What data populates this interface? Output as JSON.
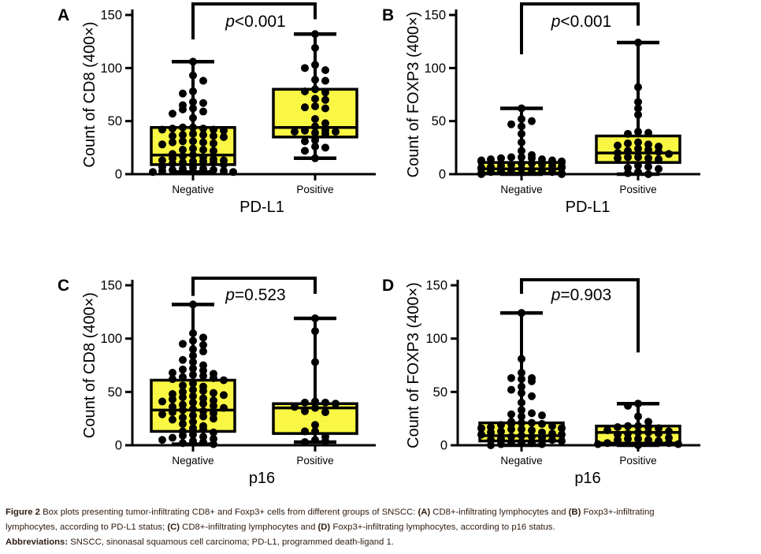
{
  "figure": {
    "background": "#ffffff",
    "box_fill": "#f9f743",
    "line_color": "#000000",
    "caption_color": "#2d1b10"
  },
  "chart_data": [
    {
      "type": "box-scatter",
      "panel_label": "A",
      "title": "",
      "xlabel": "PD-L1",
      "ylabel": "Count of CD8 (400×)",
      "ylim": [
        0,
        150
      ],
      "yticks": [
        0,
        50,
        100,
        150
      ],
      "categories": [
        "Negative",
        "Positive"
      ],
      "p_label": "p<0.001",
      "bracket": {
        "left_drop": 127,
        "right_drop": 146
      },
      "groups": [
        {
          "name": "Negative",
          "box": {
            "min": 2,
            "q1": 9,
            "median": 18,
            "q3": 44,
            "max": 106
          },
          "points": [
            106,
            93,
            88,
            78,
            76,
            68,
            67,
            65,
            62,
            61,
            59,
            57,
            53,
            44,
            44,
            43,
            43,
            42,
            42,
            41,
            38,
            37,
            37,
            36,
            36,
            35,
            31,
            31,
            30,
            30,
            29,
            28,
            24,
            23,
            23,
            22,
            19,
            18,
            17,
            16,
            15,
            14,
            13,
            13,
            12,
            12,
            11,
            11,
            10,
            9,
            7,
            6,
            5,
            5,
            4,
            4,
            3,
            3,
            2,
            2
          ]
        },
        {
          "name": "Positive",
          "box": {
            "min": 15,
            "q1": 35,
            "median": 44,
            "q3": 80,
            "max": 132
          },
          "points": [
            132,
            119,
            103,
            100,
            98,
            89,
            88,
            80,
            78,
            77,
            71,
            70,
            64,
            63,
            62,
            52,
            48,
            45,
            41,
            41,
            40,
            40,
            39,
            38,
            32,
            31,
            26,
            25,
            22,
            15
          ]
        }
      ]
    },
    {
      "type": "box-scatter",
      "panel_label": "B",
      "title": "",
      "xlabel": "PD-L1",
      "ylabel": "Count of FOXP3 (400×)",
      "ylim": [
        0,
        150
      ],
      "yticks": [
        0,
        50,
        100,
        150
      ],
      "categories": [
        "Negative",
        "Positive"
      ],
      "p_label": "p<0.001",
      "bracket": {
        "left_drop": 113,
        "right_drop": 140
      },
      "groups": [
        {
          "name": "Negative",
          "box": {
            "min": 0,
            "q1": 1,
            "median": 5,
            "q3": 11,
            "max": 62
          },
          "points": [
            62,
            52,
            50,
            47,
            45,
            38,
            30,
            22,
            18,
            16,
            16,
            15,
            15,
            14,
            14,
            13,
            13,
            12,
            12,
            11,
            10,
            10,
            9,
            9,
            8,
            8,
            7,
            7,
            6,
            6,
            5,
            5,
            4,
            4,
            3,
            3,
            2,
            2,
            1,
            1,
            0,
            0
          ]
        },
        {
          "name": "Positive",
          "box": {
            "min": 0,
            "q1": 11,
            "median": 20,
            "q3": 36,
            "max": 124
          },
          "points": [
            124,
            82,
            68,
            62,
            56,
            40,
            39,
            38,
            30,
            29,
            28,
            27,
            26,
            24,
            23,
            22,
            21,
            20,
            19,
            16,
            16,
            15,
            15,
            14,
            8,
            7,
            6,
            5,
            2,
            1,
            0
          ]
        }
      ]
    },
    {
      "type": "box-scatter",
      "panel_label": "C",
      "title": "",
      "xlabel": "p16",
      "ylabel": "Count of CD8 (400×)",
      "ylim": [
        0,
        150
      ],
      "yticks": [
        0,
        50,
        100,
        150
      ],
      "categories": [
        "Negative",
        "Positive"
      ],
      "p_label": "p=0.523",
      "bracket": {
        "left_drop": 140,
        "right_drop": 142
      },
      "groups": [
        {
          "name": "Negative",
          "box": {
            "min": 1,
            "q1": 13,
            "median": 33,
            "q3": 61,
            "max": 132
          },
          "points": [
            132,
            105,
            101,
            98,
            95,
            94,
            90,
            88,
            84,
            80,
            78,
            75,
            72,
            71,
            70,
            68,
            67,
            66,
            65,
            64,
            63,
            62,
            61,
            58,
            56,
            55,
            52,
            51,
            50,
            49,
            48,
            47,
            46,
            45,
            44,
            43,
            42,
            41,
            40,
            39,
            38,
            37,
            36,
            35,
            34,
            33,
            32,
            31,
            30,
            29,
            28,
            27,
            26,
            25,
            24,
            22,
            20,
            18,
            16,
            15,
            13,
            12,
            10,
            9,
            8,
            7,
            6,
            5,
            4,
            3,
            2,
            1
          ]
        },
        {
          "name": "Positive",
          "box": {
            "min": 3,
            "q1": 11,
            "median": 35,
            "q3": 39,
            "max": 119
          },
          "points": [
            119,
            107,
            78,
            41,
            40,
            40,
            39,
            36,
            35,
            32,
            31,
            19,
            13,
            13,
            8,
            5,
            4,
            3
          ]
        }
      ]
    },
    {
      "type": "box-scatter",
      "panel_label": "D",
      "title": "",
      "xlabel": "p16",
      "ylabel": "Count of FOXP3 (400×)",
      "ylim": [
        0,
        150
      ],
      "yticks": [
        0,
        50,
        100,
        150
      ],
      "categories": [
        "Negative",
        "Positive"
      ],
      "p_label": "p=0.903",
      "bracket": {
        "left_drop": 142,
        "right_drop": 87
      },
      "groups": [
        {
          "name": "Negative",
          "box": {
            "min": 0,
            "q1": 4,
            "median": 9,
            "q3": 21,
            "max": 124
          },
          "points": [
            124,
            81,
            68,
            63,
            63,
            62,
            60,
            55,
            52,
            49,
            46,
            40,
            33,
            30,
            29,
            28,
            27,
            22,
            21,
            21,
            20,
            20,
            19,
            18,
            17,
            16,
            16,
            15,
            15,
            14,
            13,
            12,
            12,
            11,
            10,
            10,
            9,
            8,
            8,
            7,
            6,
            5,
            5,
            4,
            3,
            3,
            2,
            1,
            1,
            0
          ]
        },
        {
          "name": "Positive",
          "box": {
            "min": 0,
            "q1": 2,
            "median": 12,
            "q3": 18,
            "max": 39
          },
          "points": [
            39,
            37,
            27,
            22,
            18,
            18,
            17,
            17,
            16,
            14,
            13,
            12,
            12,
            11,
            11,
            10,
            7,
            6,
            6,
            5,
            5,
            4,
            2,
            2,
            1,
            1,
            0
          ]
        }
      ]
    }
  ],
  "caption": {
    "lines": [
      [
        {
          "b": true,
          "t": "Figure 2"
        },
        {
          "b": false,
          "t": " Box plots presenting tumor-infiltrating CD8+ and Foxp3+ cells from different groups of SNSCC: "
        },
        {
          "b": true,
          "t": "(A)"
        },
        {
          "b": false,
          "t": " CD8+-infiltrating lymphocytes and "
        },
        {
          "b": true,
          "t": "(B)"
        },
        {
          "b": false,
          "t": " Foxp3+-infiltrating"
        }
      ],
      [
        {
          "b": false,
          "t": "lymphocytes, according to PD-L1 status; "
        },
        {
          "b": true,
          "t": "(C)"
        },
        {
          "b": false,
          "t": " CD8+-infiltrating lymphocytes and "
        },
        {
          "b": true,
          "t": "(D)"
        },
        {
          "b": false,
          "t": " Foxp3+-infiltrating lymphocytes, according to p16 status."
        }
      ],
      [
        {
          "b": true,
          "t": "Abbreviations:"
        },
        {
          "b": false,
          "t": " SNSCC, sinonasal squamous cell carcinoma; PD-L1, programmed death-ligand 1."
        }
      ]
    ]
  }
}
